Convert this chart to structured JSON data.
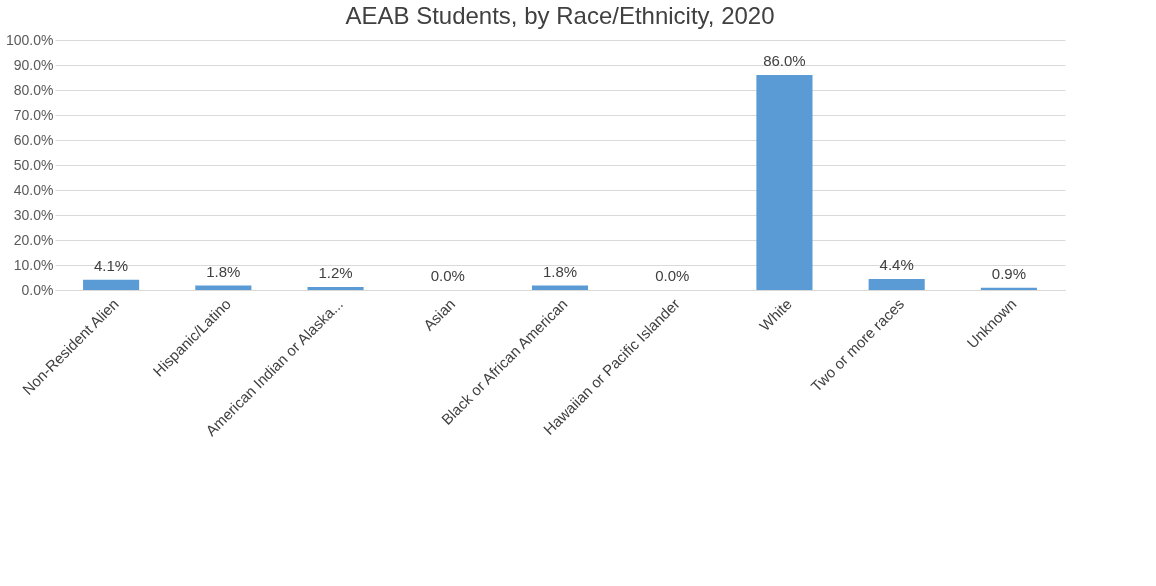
{
  "chart_data": {
    "type": "bar",
    "title": "AEAB Students, by Race/Ethnicity, 2020",
    "categories": [
      "Non-Resident Alien",
      "Hispanic/Latino",
      "American Indian or Alaska...",
      "Asian",
      "Black or African American",
      "Hawaiian or Pacific Islander",
      "White",
      "Two or more races",
      "Unknown"
    ],
    "values": [
      4.1,
      1.8,
      1.2,
      0.0,
      1.8,
      0.0,
      86.0,
      4.4,
      0.9
    ],
    "value_labels": [
      "4.1%",
      "1.8%",
      "1.2%",
      "0.0%",
      "1.8%",
      "0.0%",
      "86.0%",
      "4.4%",
      "0.9%"
    ],
    "color": "#5b9bd5",
    "ylim": [
      0,
      100
    ],
    "yticks": [
      {
        "value": 0,
        "label": "0.0%"
      },
      {
        "value": 10,
        "label": "10.0%"
      },
      {
        "value": 20,
        "label": "20.0%"
      },
      {
        "value": 30,
        "label": "30.0%"
      },
      {
        "value": 40,
        "label": "40.0%"
      },
      {
        "value": 50,
        "label": "50.0%"
      },
      {
        "value": 60,
        "label": "60.0%"
      },
      {
        "value": 70,
        "label": "70.0%"
      },
      {
        "value": 80,
        "label": "80.0%"
      },
      {
        "value": 90,
        "label": "90.0%"
      },
      {
        "value": 100,
        "label": "100.0%"
      }
    ],
    "grid": "y"
  }
}
